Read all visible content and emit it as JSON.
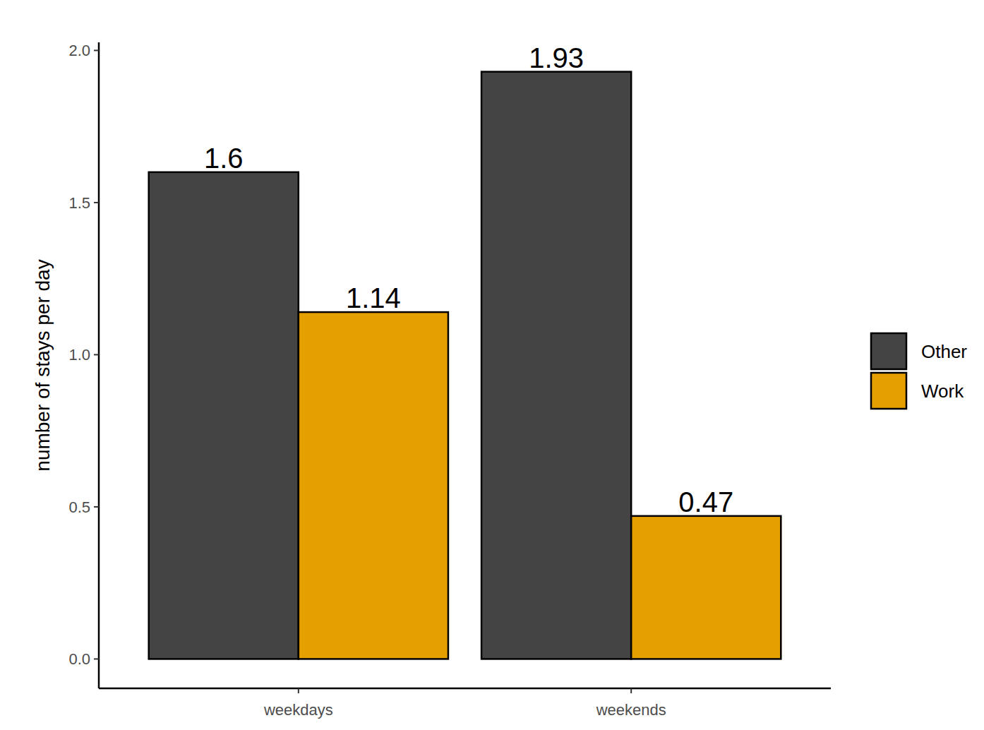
{
  "chart_data": {
    "type": "bar",
    "y_label": "number of stays per day",
    "categories": [
      "weekdays",
      "weekends"
    ],
    "series": [
      {
        "name": "Other",
        "color": "#444444",
        "values": [
          1.6,
          1.93
        ]
      },
      {
        "name": "Work",
        "color": "#E69F00",
        "values": [
          1.14,
          0.47
        ]
      }
    ],
    "ylim": [
      -0.0965,
      2.0265
    ],
    "yticks": [
      {
        "value": 0,
        "label": "0.0"
      },
      0.5,
      {
        "value": 1,
        "label": "1.0"
      },
      1.5,
      {
        "value": 2,
        "label": "2.0"
      }
    ],
    "grid": false,
    "legend": "right",
    "data_labels": true
  }
}
